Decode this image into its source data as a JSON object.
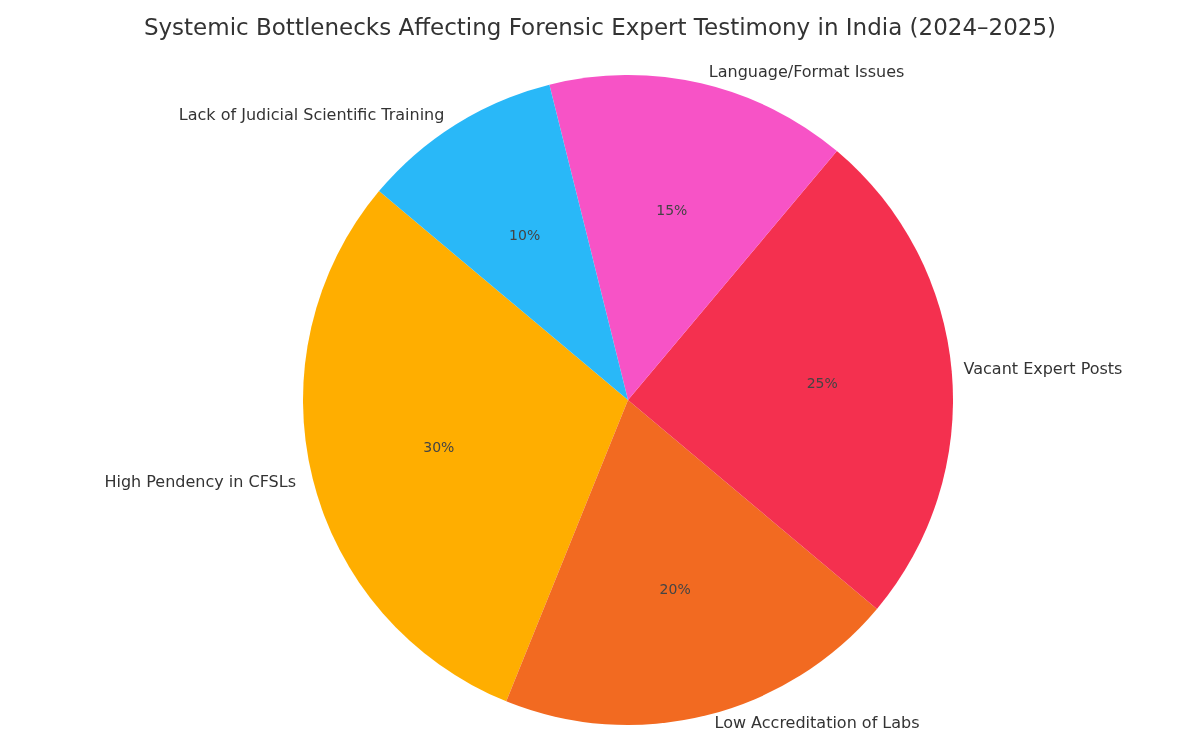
{
  "chart_data": {
    "type": "pie",
    "title": "Systemic Bottlenecks Affecting Forensic Expert Testimony in India (2024–2025)",
    "categories": [
      "High Pendency in CFSLs",
      "Low Accreditation of Labs",
      "Vacant Expert Posts",
      "Language/Format Issues",
      "Lack of Judicial Scientific Training"
    ],
    "values": [
      30,
      20,
      25,
      15,
      10
    ],
    "colors": [
      "#ffae00",
      "#f26a21",
      "#f4304f",
      "#f753c6",
      "#29b8f8"
    ],
    "value_labels": [
      "30%",
      "20%",
      "25%",
      "15%",
      "10%"
    ]
  }
}
